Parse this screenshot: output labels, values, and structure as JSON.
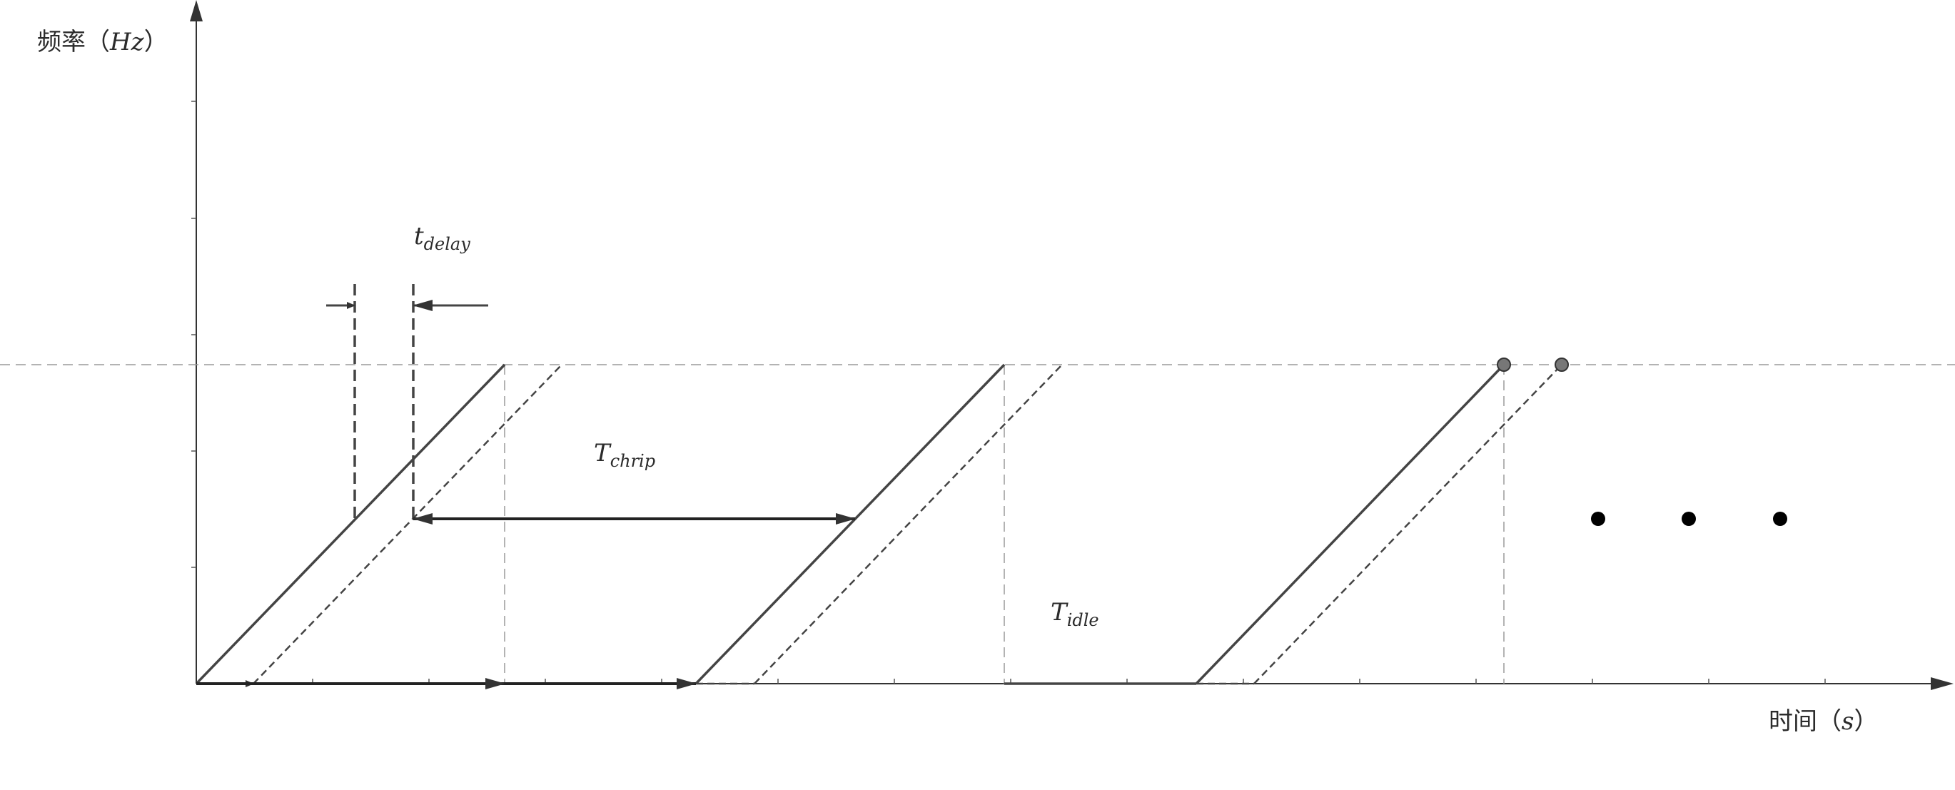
{
  "axes": {
    "y_label": "频率（",
    "y_unit": "Hz",
    "y_close": "）",
    "x_label": "时间（",
    "x_unit": "s",
    "x_close": "）"
  },
  "labels": {
    "t_delay": {
      "main": "t",
      "sub": "delay"
    },
    "T_chrip": {
      "main": "T",
      "sub": "chrip"
    },
    "T_idle": {
      "main": "T",
      "sub": "idle"
    }
  },
  "colors": {
    "line": "#444444",
    "guide": "#9a9a9a",
    "dot": "#000000",
    "marker": "#777777"
  }
}
